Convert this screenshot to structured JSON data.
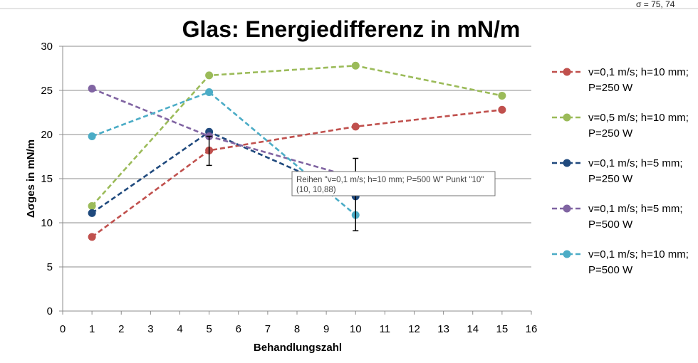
{
  "chart_data": {
    "type": "line",
    "title": "Glas: Energiedifferenz in mN/m",
    "xlabel": "Behandlungszahl",
    "ylabel": "Δσges in mN/m",
    "xlim": [
      0,
      16
    ],
    "ylim": [
      0,
      30
    ],
    "x_ticks": [
      "0",
      "1",
      "2",
      "3",
      "4",
      "5",
      "6",
      "7",
      "8",
      "9",
      "10",
      "11",
      "12",
      "13",
      "14",
      "15",
      "16"
    ],
    "y_ticks": [
      "0",
      "5",
      "10",
      "15",
      "20",
      "25",
      "30"
    ],
    "grid": true,
    "legend_position": "right",
    "series": [
      {
        "name_line1": "v=0,1 m/s; h=10 mm;",
        "name_line2": "P=250 W",
        "color": "#C0504D",
        "x": [
          1,
          5,
          10,
          15
        ],
        "y": [
          8.4,
          18.2,
          20.9,
          22.8
        ]
      },
      {
        "name_line1": "v=0,5 m/s; h=10 mm;",
        "name_line2": "P=250 W",
        "color": "#9BBB59",
        "x": [
          1,
          5,
          10,
          15
        ],
        "y": [
          11.9,
          26.7,
          27.8,
          24.4
        ]
      },
      {
        "name_line1": "v=0,1 m/s; h=5 mm;",
        "name_line2": "P=250 W",
        "color": "#1F497D",
        "x": [
          1,
          5,
          10
        ],
        "y": [
          11.1,
          20.3,
          13.0
        ]
      },
      {
        "name_line1": "v=0,1 m/s; h=5 mm;",
        "name_line2": "P=500 W",
        "color": "#8064A2",
        "x": [
          1,
          5,
          10
        ],
        "y": [
          25.2,
          19.8,
          15.1
        ]
      },
      {
        "name_line1": "v=0,1 m/s; h=10 mm;",
        "name_line2": "P=500 W",
        "color": "#4BACC6",
        "x": [
          1,
          5,
          10
        ],
        "y": [
          19.8,
          24.8,
          10.88
        ]
      }
    ],
    "error_bars": [
      {
        "x": 5,
        "low": 16.5,
        "high": 19.8
      },
      {
        "x": 10,
        "low": 9.1,
        "high": 17.3
      }
    ],
    "tooltip": {
      "line1": "Reihen \"v=0,1 m/s; h=10 mm; P=500 W\" Punkt \"10\"",
      "line2": "(10, 10,88)"
    }
  },
  "corner_text": "σ  = 75, 74"
}
